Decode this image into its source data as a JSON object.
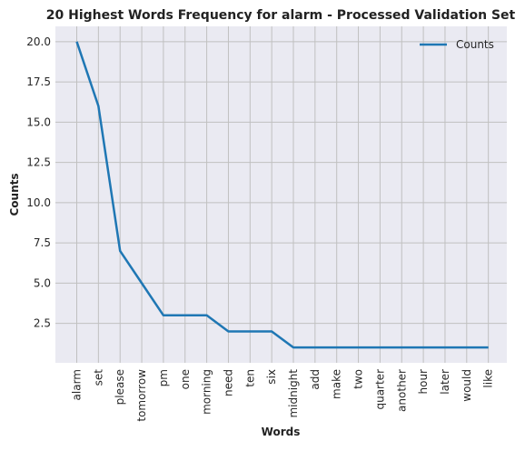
{
  "chart_data": {
    "type": "line",
    "title": "20 Highest Words Frequency for alarm - Processed Validation Set",
    "xlabel": "Words",
    "ylabel": "Counts",
    "categories": [
      "alarm",
      "set",
      "please",
      "tomorrow",
      "pm",
      "one",
      "morning",
      "need",
      "ten",
      "six",
      "midnight",
      "add",
      "make",
      "two",
      "quarter",
      "another",
      "hour",
      "later",
      "would",
      "like"
    ],
    "series": [
      {
        "name": "Counts",
        "values": [
          20,
          16,
          7,
          5,
          3,
          3,
          3,
          2,
          2,
          2,
          1,
          1,
          1,
          1,
          1,
          1,
          1,
          1,
          1,
          1
        ]
      }
    ],
    "ylim": [
      0.05,
      20.95
    ],
    "yticks": [
      "2.5",
      "5.0",
      "7.5",
      "10.0",
      "12.5",
      "15.0",
      "17.5",
      "20.0"
    ],
    "grid": true,
    "legend_position": "top-right",
    "colors": {
      "line": "#1f77b4",
      "plot_bg": "#eaeaf2",
      "grid": "#c0c0c0"
    }
  }
}
